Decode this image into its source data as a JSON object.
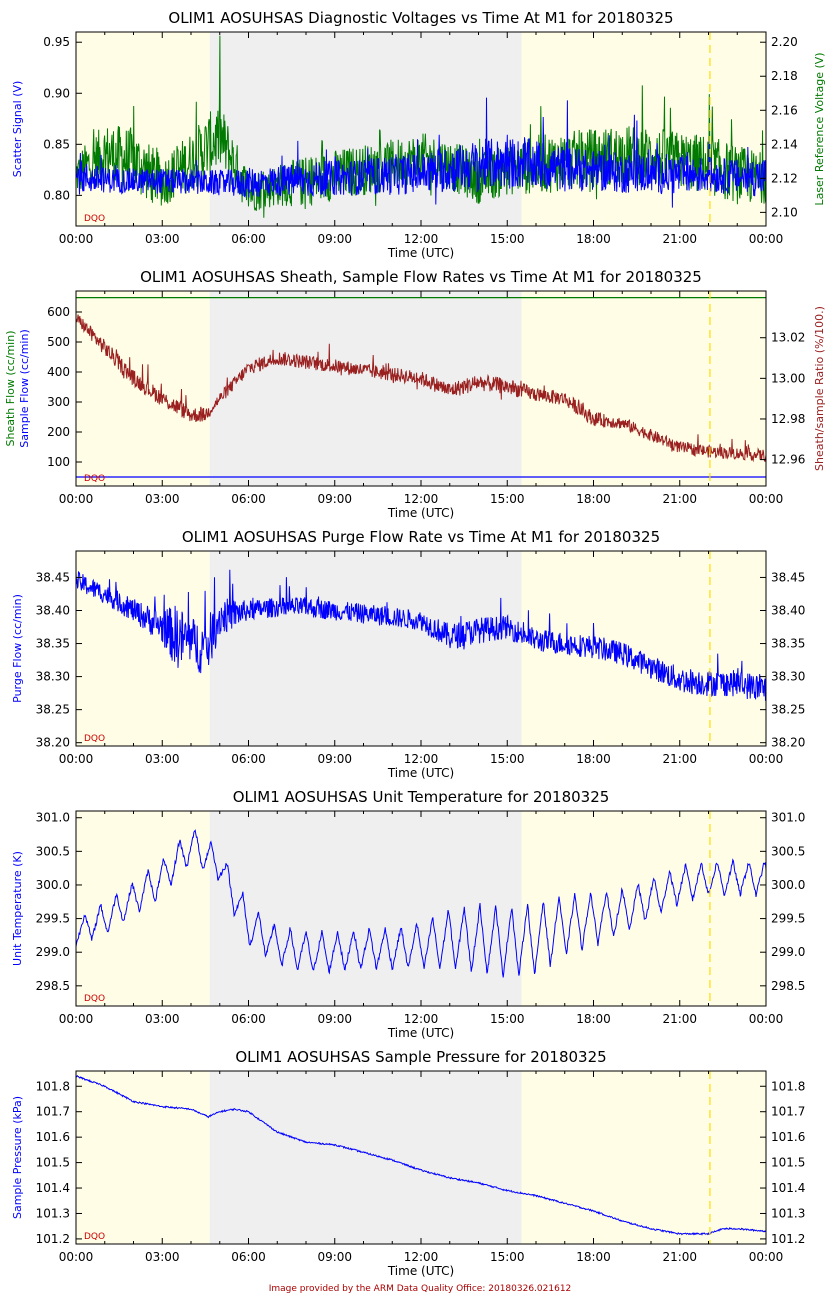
{
  "footer": "Image provided by the ARM Data Quality Office: 20180326.021612",
  "colors": {
    "night": "#fffde6",
    "day": "#efefef",
    "blue": "#0000ff",
    "green": "#007a00",
    "brown": "#9a2020",
    "yellow_line": "#ffdd00",
    "dqo": "#cc0000"
  },
  "shading": {
    "day_start_hour": 4.65,
    "day_end_hour": 15.5,
    "marker_hour": 22.05
  },
  "x_axis": {
    "label": "Time (UTC)",
    "range_hours": [
      0,
      24
    ],
    "ticks": [
      "00:00",
      "03:00",
      "06:00",
      "09:00",
      "12:00",
      "15:00",
      "18:00",
      "21:00",
      "00:00"
    ]
  },
  "chart_data": [
    {
      "type": "line",
      "title": "OLIM1 AOSUHSAS Diagnostic Voltages vs Time At M1 for 20180325",
      "dqo": "DQO",
      "ylabel_left": "Scatter Signal (V)",
      "ylabel_right": "Laser Reference Voltage (V)",
      "yleft": {
        "range": [
          0.77,
          0.96
        ],
        "ticks": [
          "0.80",
          "0.85",
          "0.90",
          "0.95"
        ]
      },
      "yright": {
        "range": [
          2.092,
          2.206
        ],
        "ticks": [
          "2.10",
          "2.12",
          "2.14",
          "2.16",
          "2.18",
          "2.20"
        ]
      },
      "series": [
        {
          "name": "Laser Reference Voltage",
          "axis": "right",
          "color": "green",
          "style": "noisy",
          "x": [
            0,
            1,
            2,
            3,
            4,
            5,
            6,
            7,
            8,
            9,
            10,
            11,
            12,
            13,
            14,
            15,
            16,
            17,
            18,
            19,
            20,
            21,
            22,
            23,
            24
          ],
          "y": [
            2.122,
            2.135,
            2.13,
            2.118,
            2.13,
            2.145,
            2.112,
            2.116,
            2.118,
            2.122,
            2.125,
            2.128,
            2.132,
            2.128,
            2.12,
            2.125,
            2.128,
            2.13,
            2.132,
            2.134,
            2.133,
            2.13,
            2.128,
            2.122,
            2.12
          ],
          "amp": [
            0.025,
            0.035,
            0.04,
            0.03,
            0.035,
            0.04,
            0.025,
            0.025,
            0.03,
            0.03,
            0.03,
            0.03,
            0.03,
            0.03,
            0.03,
            0.03,
            0.035,
            0.035,
            0.035,
            0.035,
            0.035,
            0.035,
            0.035,
            0.035,
            0.03
          ]
        },
        {
          "name": "Scatter Signal",
          "axis": "left",
          "color": "blue",
          "style": "noisy",
          "x": [
            0,
            1,
            2,
            3,
            4,
            5,
            6,
            7,
            8,
            9,
            10,
            11,
            12,
            13,
            14,
            15,
            16,
            17,
            18,
            19,
            20,
            21,
            22,
            23,
            24
          ],
          "y": [
            0.818,
            0.815,
            0.814,
            0.814,
            0.813,
            0.812,
            0.812,
            0.814,
            0.815,
            0.817,
            0.818,
            0.82,
            0.822,
            0.825,
            0.83,
            0.832,
            0.83,
            0.826,
            0.824,
            0.822,
            0.822,
            0.82,
            0.82,
            0.818,
            0.818
          ],
          "amp": [
            0.035,
            0.025,
            0.025,
            0.025,
            0.025,
            0.025,
            0.03,
            0.03,
            0.035,
            0.035,
            0.035,
            0.04,
            0.04,
            0.045,
            0.05,
            0.05,
            0.05,
            0.045,
            0.04,
            0.04,
            0.04,
            0.04,
            0.035,
            0.035,
            0.04
          ]
        }
      ]
    },
    {
      "type": "line",
      "title": "OLIM1 AOSUHSAS Sheath, Sample Flow Rates vs Time At M1 for 20180325",
      "dqo": "DQO",
      "ylabel_left": "Sheath Flow (cc/min)",
      "ylabel_left2": "Sample Flow (cc/min)",
      "ylabel_right": "Sheath/sample Ratio (%/100.)",
      "yleft": {
        "range": [
          20,
          670
        ],
        "ticks": [
          "100",
          "200",
          "300",
          "400",
          "500",
          "600"
        ]
      },
      "yright": {
        "range": [
          12.947,
          13.043
        ],
        "ticks": [
          "12.96",
          "12.98",
          "13.00",
          "13.02"
        ]
      },
      "series": [
        {
          "name": "Sheath/sample Ratio",
          "axis": "right",
          "color": "brown",
          "style": "noisy",
          "x": [
            0,
            1,
            2,
            3,
            4,
            4.5,
            5,
            6,
            7,
            8,
            9,
            10,
            11,
            12,
            13,
            14,
            15,
            16,
            17,
            18,
            19,
            20,
            21,
            22,
            23,
            24
          ],
          "y": [
            13.03,
            13.015,
            13.0,
            12.99,
            12.982,
            12.982,
            12.99,
            13.005,
            13.01,
            13.008,
            13.006,
            13.004,
            13.002,
            13.0,
            12.994,
            12.998,
            12.996,
            12.992,
            12.99,
            12.98,
            12.978,
            12.972,
            12.966,
            12.964,
            12.963,
            12.962
          ],
          "amp": [
            0.006,
            0.008,
            0.008,
            0.008,
            0.008,
            0.007,
            0.006,
            0.007,
            0.007,
            0.007,
            0.007,
            0.007,
            0.007,
            0.007,
            0.008,
            0.008,
            0.008,
            0.007,
            0.007,
            0.007,
            0.006,
            0.006,
            0.006,
            0.006,
            0.006,
            0.006
          ]
        },
        {
          "name": "Sheath Flow",
          "axis": "left",
          "color": "green",
          "style": "line",
          "x": [
            0,
            24
          ],
          "y": [
            648,
            648
          ]
        },
        {
          "name": "Sample Flow",
          "axis": "left",
          "color": "blue",
          "style": "line",
          "x": [
            0,
            24
          ],
          "y": [
            50,
            50
          ]
        }
      ]
    },
    {
      "type": "line",
      "title": "OLIM1 AOSUHSAS Purge Flow Rate vs Time At M1 for 20180325",
      "dqo": "DQO",
      "ylabel_left": "Purge Flow (cc/min)",
      "yleft": {
        "range": [
          38.195,
          38.49
        ],
        "ticks": [
          "38.20",
          "38.25",
          "38.30",
          "38.35",
          "38.40",
          "38.45"
        ]
      },
      "yright": {
        "range": [
          38.195,
          38.49
        ],
        "ticks": [
          "38.20",
          "38.25",
          "38.30",
          "38.35",
          "38.40",
          "38.45"
        ]
      },
      "series": [
        {
          "name": "Purge Flow",
          "axis": "left",
          "color": "blue",
          "style": "noisy",
          "x": [
            0,
            1,
            2,
            3,
            3.5,
            4,
            4.5,
            5,
            6,
            7,
            8,
            9,
            10,
            11,
            12,
            13,
            14,
            15,
            16,
            17,
            18,
            19,
            20,
            21,
            22,
            23,
            24
          ],
          "y": [
            38.445,
            38.425,
            38.4,
            38.375,
            38.36,
            38.355,
            38.34,
            38.39,
            38.4,
            38.405,
            38.405,
            38.4,
            38.395,
            38.39,
            38.385,
            38.36,
            38.37,
            38.375,
            38.355,
            38.35,
            38.345,
            38.335,
            38.315,
            38.295,
            38.29,
            38.29,
            38.28
          ],
          "amp": [
            0.03,
            0.03,
            0.035,
            0.05,
            0.1,
            0.07,
            0.09,
            0.06,
            0.03,
            0.03,
            0.03,
            0.03,
            0.03,
            0.03,
            0.03,
            0.04,
            0.04,
            0.035,
            0.035,
            0.035,
            0.035,
            0.035,
            0.035,
            0.04,
            0.04,
            0.04,
            0.045
          ]
        }
      ]
    },
    {
      "type": "line",
      "title": "OLIM1 AOSUHSAS Unit Temperature for 20180325",
      "dqo": "DQO",
      "ylabel_left": "Unit Temperature (K)",
      "yleft": {
        "range": [
          298.2,
          301.1
        ],
        "ticks": [
          "298.5",
          "299.0",
          "299.5",
          "300.0",
          "300.5",
          "301.0"
        ]
      },
      "yright": {
        "range": [
          298.2,
          301.1
        ],
        "ticks": [
          "298.5",
          "299.0",
          "299.5",
          "300.0",
          "300.5",
          "301.0"
        ]
      },
      "series": [
        {
          "name": "Unit Temperature",
          "axis": "left",
          "color": "blue",
          "style": "oscillating",
          "x": [
            0,
            1,
            2,
            3,
            4,
            5,
            6,
            7,
            8,
            9,
            10,
            11,
            12,
            13,
            14,
            15,
            16,
            17,
            18,
            19,
            20,
            21,
            22,
            23,
            24
          ],
          "y": [
            299.3,
            299.5,
            299.8,
            300.1,
            300.6,
            300.3,
            299.4,
            299.1,
            299.0,
            299.0,
            299.05,
            299.05,
            299.1,
            299.2,
            299.2,
            299.15,
            299.2,
            299.4,
            299.5,
            299.6,
            299.8,
            300.0,
            300.1,
            300.1,
            300.1
          ],
          "amp": [
            0.4,
            0.5,
            0.5,
            0.55,
            0.55,
            0.5,
            0.6,
            0.6,
            0.6,
            0.6,
            0.6,
            0.6,
            0.7,
            0.9,
            1.0,
            1.05,
            1.1,
            0.9,
            0.8,
            0.7,
            0.6,
            0.55,
            0.5,
            0.5,
            0.5
          ]
        }
      ]
    },
    {
      "type": "line",
      "title": "OLIM1 AOSUHSAS Sample Pressure for 20180325",
      "dqo": "DQO",
      "ylabel_left": "Sample Pressure (kPa)",
      "yleft": {
        "range": [
          101.18,
          101.86
        ],
        "ticks": [
          "101.2",
          "101.3",
          "101.4",
          "101.5",
          "101.6",
          "101.7",
          "101.8"
        ]
      },
      "yright": {
        "range": [
          101.18,
          101.86
        ],
        "ticks": [
          "101.2",
          "101.3",
          "101.4",
          "101.5",
          "101.6",
          "101.7",
          "101.8"
        ]
      },
      "series": [
        {
          "name": "Sample Pressure",
          "axis": "left",
          "color": "blue",
          "style": "smooth",
          "x": [
            0,
            1,
            2,
            3,
            4,
            4.6,
            5,
            5.5,
            6,
            7,
            8,
            9,
            10,
            11,
            12,
            13,
            14,
            15,
            16,
            17,
            18,
            19,
            20,
            21,
            22,
            22.5,
            23,
            24
          ],
          "y": [
            101.84,
            101.8,
            101.74,
            101.72,
            101.71,
            101.68,
            101.7,
            101.71,
            101.7,
            101.62,
            101.58,
            101.57,
            101.54,
            101.51,
            101.47,
            101.44,
            101.42,
            101.39,
            101.37,
            101.34,
            101.31,
            101.27,
            101.24,
            101.22,
            101.22,
            101.24,
            101.24,
            101.23
          ],
          "amp": [
            0.006,
            0.006,
            0.006,
            0.006,
            0.006,
            0.006,
            0.006,
            0.006,
            0.006,
            0.006,
            0.006,
            0.006,
            0.006,
            0.006,
            0.006,
            0.006,
            0.006,
            0.006,
            0.006,
            0.006,
            0.006,
            0.006,
            0.006,
            0.006,
            0.006,
            0.006,
            0.006,
            0.006
          ]
        }
      ]
    }
  ]
}
